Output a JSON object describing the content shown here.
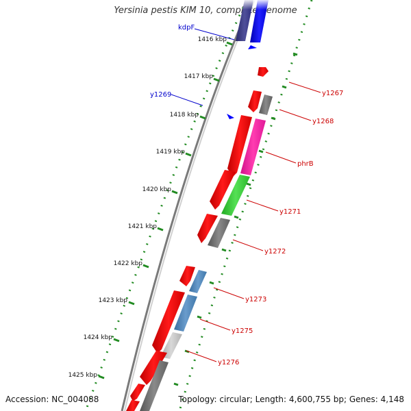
{
  "header": {
    "title": "Yersinia pestis KIM 10, complete genome"
  },
  "footer": {
    "accession": "Accession: NC_004088",
    "summary": "Topology: circular; Length: 4,600,755 bp; Genes: 4,148"
  },
  "colors": {
    "forward_gene": "#ff0000",
    "reverse_gene": "#0000ff",
    "axis_tick": "#228B22",
    "backbone": "#7a7a7a",
    "label_forward": "#cc0000",
    "label_reverse": "#0000cc"
  },
  "scale": {
    "ticks": [
      "1416 kbp",
      "1417 kbp",
      "1418 kbp",
      "1419 kbp",
      "1420 kbp",
      "1421 kbp",
      "1422 kbp",
      "1423 kbp",
      "1424 kbp",
      "1425 kbp"
    ]
  },
  "genes": [
    {
      "label": "kdpF",
      "strand": "reverse",
      "label_color": "reverse"
    },
    {
      "label": "y1269",
      "strand": "reverse",
      "label_color": "reverse"
    },
    {
      "label": "y1267",
      "strand": "forward",
      "label_color": "forward"
    },
    {
      "label": "y1268",
      "strand": "forward",
      "label_color": "forward"
    },
    {
      "label": "phrB",
      "strand": "forward",
      "label_color": "forward"
    },
    {
      "label": "y1271",
      "strand": "forward",
      "label_color": "forward"
    },
    {
      "label": "y1272",
      "strand": "forward",
      "label_color": "forward"
    },
    {
      "label": "y1273",
      "strand": "forward",
      "label_color": "forward"
    },
    {
      "label": "y1275",
      "strand": "forward",
      "label_color": "forward"
    },
    {
      "label": "y1276",
      "strand": "forward",
      "label_color": "forward"
    }
  ]
}
